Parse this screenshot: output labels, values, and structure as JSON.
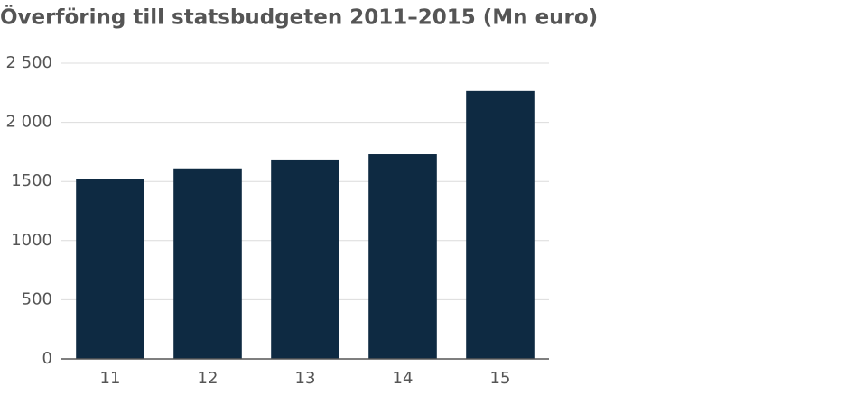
{
  "chart_data": {
    "type": "bar",
    "title": "Överföring till statsbudgeten 2011–2015 (Mn euro)",
    "categories": [
      "11",
      "12",
      "13",
      "14",
      "15"
    ],
    "values": [
      1520,
      1610,
      1685,
      1730,
      2265
    ],
    "color": "#0e2a42",
    "ylim": [
      0,
      2500
    ],
    "yticks": [
      0,
      500,
      1000,
      1500,
      {
        "value": 2000,
        "label": "2 000"
      },
      {
        "value": 2500,
        "label": "2 500"
      }
    ],
    "grid": true
  }
}
